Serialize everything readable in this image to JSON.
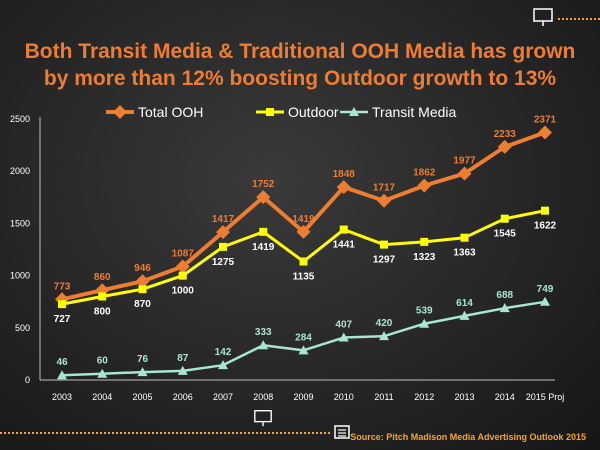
{
  "title": {
    "line1": "Both Transit Media & Traditional OOH Media has grown",
    "line2": "by more than 12%  boosting Outdoor growth to 13%"
  },
  "source": "Source: Pitch Madison Media Advertising Outlook 2015",
  "colors": {
    "title": "#ed7d31",
    "total_ooh": "#ed7d31",
    "outdoor": "#ffff00",
    "transit_media": "#a8e6cf",
    "accent_dots": "#f5a623"
  },
  "icons": [
    "billboard-icon",
    "ticket-icon"
  ],
  "chart_data": {
    "type": "line",
    "x": [
      "2003",
      "2004",
      "2005",
      "2006",
      "2007",
      "2008",
      "2009",
      "2010",
      "2011",
      "2012",
      "2013",
      "2014",
      "2015 Proj"
    ],
    "ylim": [
      0,
      2500
    ],
    "yticks": [
      "0",
      "500",
      "1000",
      "1500",
      "2000",
      "2500"
    ],
    "grid": false,
    "legend": "top",
    "series": [
      {
        "name": "Total OOH",
        "marker": "diamond",
        "labels": "above",
        "values": [
          773,
          860,
          946,
          1087,
          1417,
          1752,
          1419,
          1848,
          1717,
          1862,
          1977,
          2233,
          2371
        ]
      },
      {
        "name": "Outdoor",
        "marker": "square",
        "labels": "below",
        "values": [
          727,
          800,
          870,
          1000,
          1275,
          1419,
          1135,
          1441,
          1297,
          1323,
          1363,
          1545,
          1622
        ]
      },
      {
        "name": "Transit Media",
        "marker": "triangle",
        "labels": "above",
        "values": [
          46,
          60,
          76,
          87,
          142,
          333,
          284,
          407,
          420,
          539,
          614,
          688,
          749
        ]
      }
    ]
  }
}
